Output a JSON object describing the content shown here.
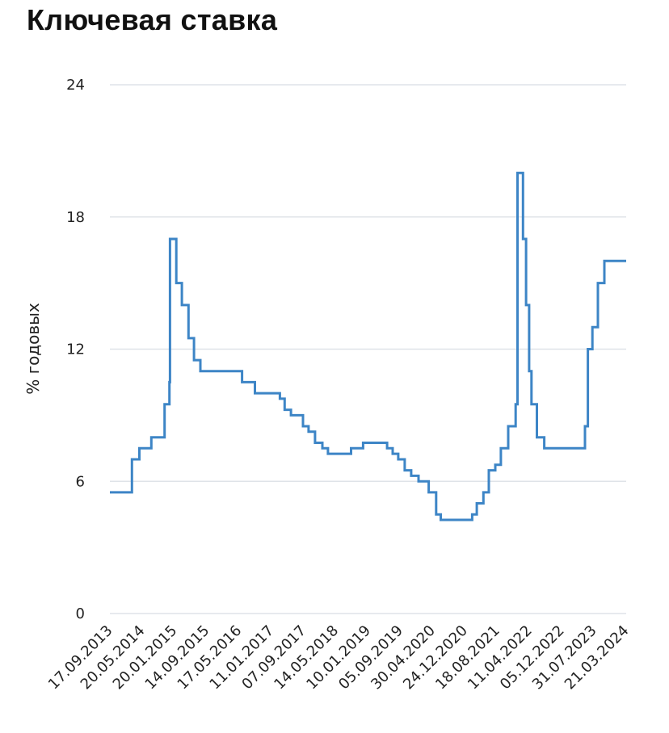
{
  "chart_data": {
    "type": "line",
    "title": "Ключевая ставка",
    "xlabel": "",
    "ylabel": "% годовых",
    "ylim": [
      0,
      24
    ],
    "yticks": [
      0,
      6,
      12,
      18,
      24
    ],
    "xlim": [
      "2013-09-17",
      "2024-05-31"
    ],
    "xtick_labels": [
      "17.09.2013",
      "20.05.2014",
      "20.01.2015",
      "14.09.2015",
      "17.05.2016",
      "11.01.2017",
      "07.09.2017",
      "14.05.2018",
      "10.01.2019",
      "05.09.2019",
      "30.04.2020",
      "24.12.2020",
      "18.08.2021",
      "11.04.2022",
      "05.12.2022",
      "31.07.2023",
      "21.03.2024"
    ],
    "grid": "horizontal",
    "color": "#3d85c6",
    "series": [
      {
        "step": true,
        "x": [
          "2013-09-17",
          "2014-03-03",
          "2014-04-28",
          "2014-07-28",
          "2014-11-05",
          "2014-12-12",
          "2014-12-16",
          "2015-02-02",
          "2015-03-16",
          "2015-05-05",
          "2015-06-16",
          "2015-08-03",
          "2016-06-14",
          "2016-09-19",
          "2017-03-27",
          "2017-05-02",
          "2017-06-19",
          "2017-09-18",
          "2017-10-30",
          "2017-12-18",
          "2018-02-12",
          "2018-03-26",
          "2018-09-17",
          "2018-12-17",
          "2019-06-17",
          "2019-07-29",
          "2019-09-09",
          "2019-10-28",
          "2019-12-16",
          "2020-02-10",
          "2020-04-27",
          "2020-06-22",
          "2020-07-27",
          "2021-03-22",
          "2021-04-26",
          "2021-06-15",
          "2021-07-26",
          "2021-09-13",
          "2021-10-25",
          "2021-12-20",
          "2022-02-14",
          "2022-02-28",
          "2022-04-11",
          "2022-05-04",
          "2022-05-27",
          "2022-06-14",
          "2022-07-25",
          "2022-09-19",
          "2023-07-24",
          "2023-08-15",
          "2023-09-18",
          "2023-10-30",
          "2023-12-18",
          "2024-05-31"
        ],
        "y": [
          5.5,
          7.0,
          7.5,
          8.0,
          9.5,
          10.5,
          17.0,
          15.0,
          14.0,
          12.5,
          11.5,
          11.0,
          10.5,
          10.0,
          9.75,
          9.25,
          9.0,
          8.5,
          8.25,
          7.75,
          7.5,
          7.25,
          7.5,
          7.75,
          7.5,
          7.25,
          7.0,
          6.5,
          6.25,
          6.0,
          5.5,
          4.5,
          4.25,
          4.5,
          5.0,
          5.5,
          6.5,
          6.75,
          7.5,
          8.5,
          9.5,
          20.0,
          17.0,
          14.0,
          11.0,
          9.5,
          8.0,
          7.5,
          8.5,
          12.0,
          13.0,
          15.0,
          16.0,
          16.0
        ]
      }
    ]
  }
}
